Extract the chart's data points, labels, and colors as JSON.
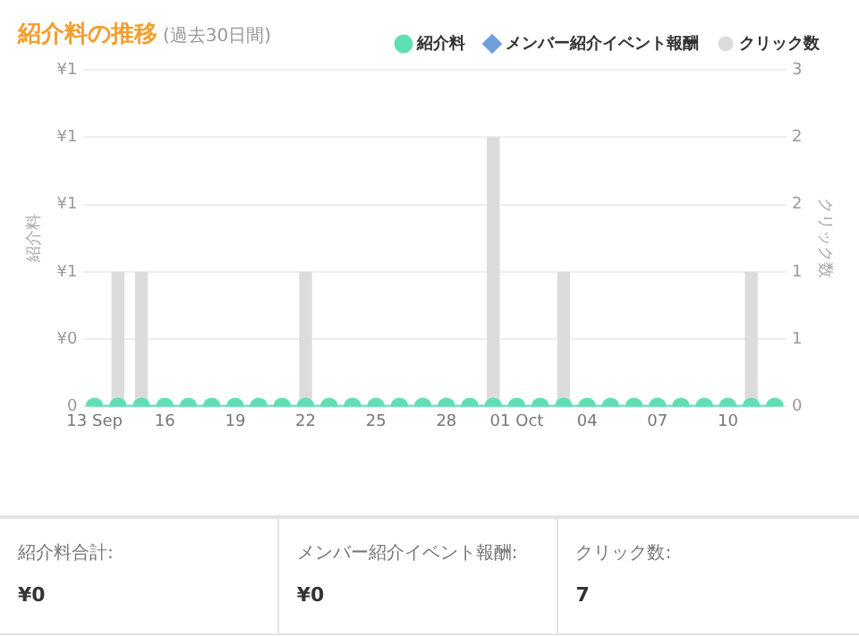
{
  "chart_data": [
    {
      "type": "line",
      "title": "紹介料の推移",
      "subtitle": "(過去30日間)",
      "ylabel": "紹介料",
      "y2label": "クリック数",
      "categories": [
        "13 Sep",
        null,
        null,
        "16",
        null,
        null,
        "19",
        null,
        null,
        "22",
        null,
        null,
        "25",
        null,
        null,
        "28",
        null,
        null,
        "01 Oct",
        null,
        null,
        "04",
        null,
        null,
        "07",
        null,
        null,
        "10",
        null,
        null
      ],
      "series": [
        {
          "name": "紹介料",
          "type": "line",
          "color": "#5fe0b4",
          "marker": "circle",
          "values": [
            0,
            0,
            0,
            0,
            0,
            0,
            0,
            0,
            0,
            0,
            0,
            0,
            0,
            0,
            0,
            0,
            0,
            0,
            0,
            0,
            0,
            0,
            0,
            0,
            0,
            0,
            0,
            0,
            0,
            0
          ]
        },
        {
          "name": "メンバー紹介イベント報酬",
          "type": "line",
          "color": "#6fa0dc",
          "marker": "diamond",
          "values": [
            null,
            null,
            null,
            null,
            null,
            null,
            null,
            null,
            null,
            null,
            null,
            null,
            null,
            null,
            null,
            null,
            null,
            null,
            null,
            null,
            null,
            null,
            null,
            null,
            null,
            null,
            null,
            null,
            null,
            null
          ]
        },
        {
          "name": "クリック数",
          "type": "bar",
          "axis": "y2",
          "color": "#dcdcdc",
          "values": [
            0,
            1,
            1,
            0,
            0,
            0,
            0,
            0,
            0,
            1,
            0,
            0,
            0,
            0,
            0,
            0,
            0,
            2,
            0,
            0,
            1,
            0,
            0,
            0,
            0,
            0,
            0,
            0,
            1,
            0
          ]
        }
      ],
      "ylim": [
        0,
        1.25
      ],
      "yticks": [
        0,
        {
          "value": 0.25,
          "label": "¥0"
        },
        {
          "value": 0.5,
          "label": "¥1"
        },
        {
          "value": 0.75,
          "label": "¥1"
        },
        {
          "value": 1,
          "label": "¥1"
        },
        {
          "value": 1.25,
          "label": "¥1"
        }
      ],
      "y2lim": [
        0,
        2.5
      ],
      "y2ticks": [
        0,
        {
          "value": 0.5,
          "label": "1"
        },
        1,
        {
          "value": 1.5,
          "label": "2"
        },
        2,
        {
          "value": 2.5,
          "label": "3"
        }
      ],
      "grid": "y",
      "legend": "top right"
    },
    {
      "type": "other",
      "annotations": [
        "紹介料合計:",
        "¥0",
        "メンバー紹介イベント報酬:",
        "¥0",
        "クリック数:",
        "7"
      ]
    }
  ]
}
